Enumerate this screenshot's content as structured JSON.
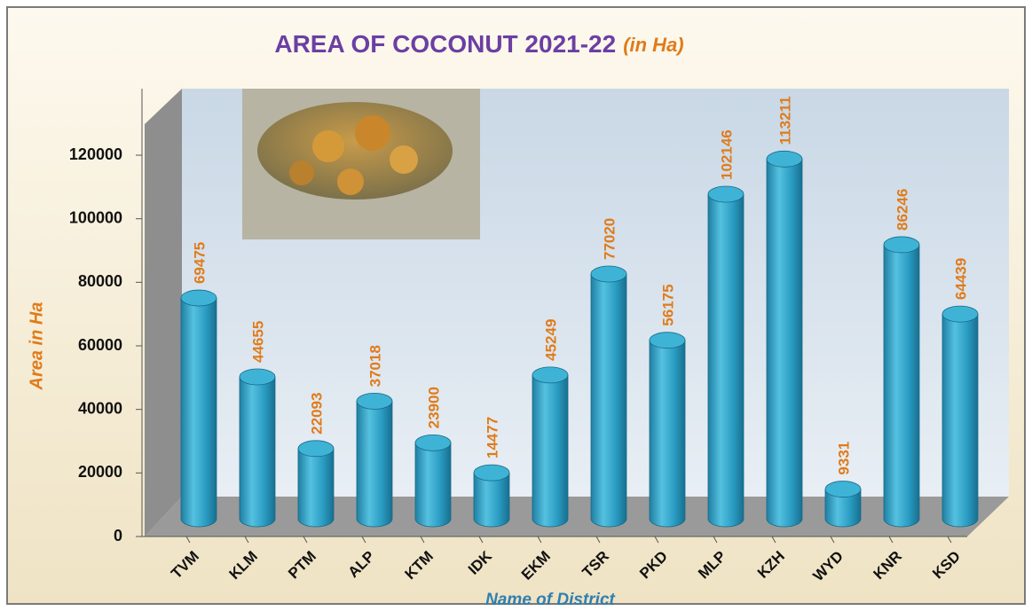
{
  "chart_data": {
    "type": "bar",
    "title": "AREA OF COCONUT  2021-22",
    "subtitle": "(in Ha)",
    "x_label": "Name of District",
    "y_label": "Area in Ha",
    "categories": [
      "TVM",
      "KLM",
      "PTM",
      "ALP",
      "KTM",
      "IDK",
      "EKM",
      "TSR",
      "PKD",
      "MLP",
      "KZH",
      "WYD",
      "KNR",
      "KSD"
    ],
    "values": [
      69475,
      44655,
      22093,
      37018,
      23900,
      14477,
      45249,
      77020,
      56175,
      102146,
      113211,
      9331,
      86246,
      64439
    ],
    "color": "#2a9cc2",
    "ylim": [
      0,
      132000
    ],
    "yticks": [
      0,
      20000,
      40000,
      60000,
      80000,
      100000,
      120000
    ]
  }
}
